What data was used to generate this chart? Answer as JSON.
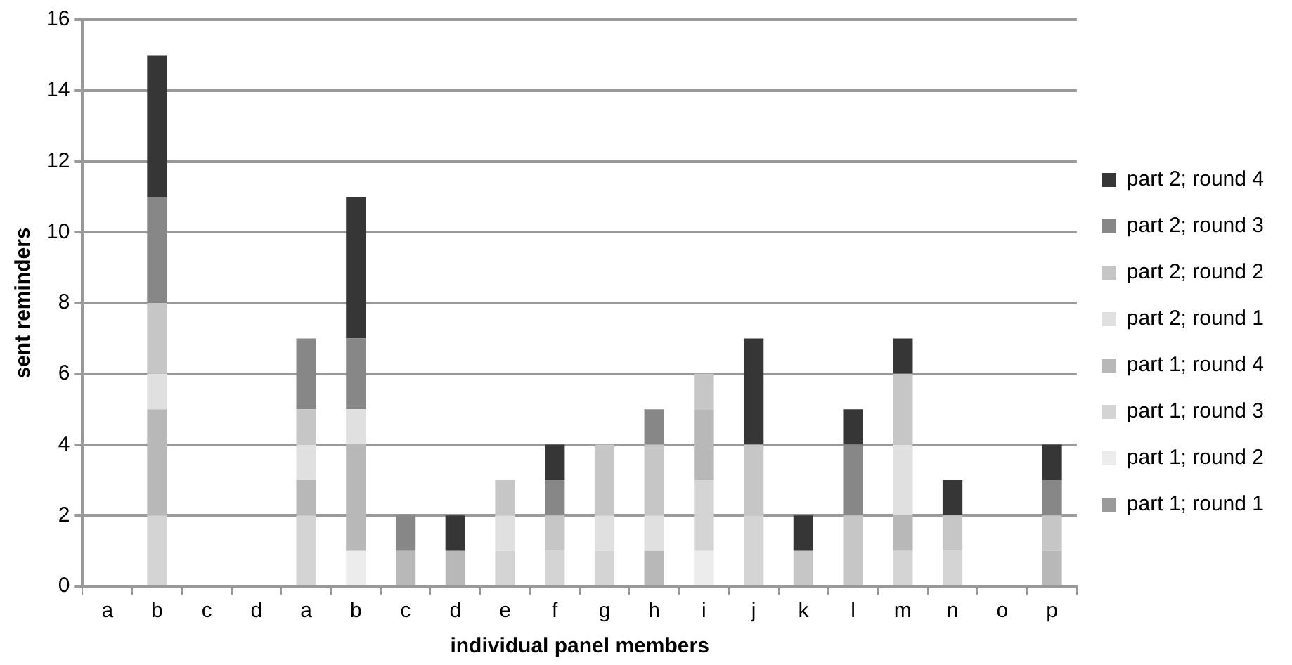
{
  "chart_data": {
    "type": "bar",
    "stacked": true,
    "xlabel": "individual panel members",
    "ylabel": "sent reminders",
    "categories": [
      "a",
      "b",
      "c",
      "d",
      "a",
      "b",
      "c",
      "d",
      "e",
      "f",
      "g",
      "h",
      "i",
      "j",
      "k",
      "l",
      "m",
      "n",
      "o",
      "p"
    ],
    "series": [
      {
        "name": "part 1; round 1",
        "color": "#9a9a9a",
        "values": [
          0,
          0,
          0,
          0,
          0,
          0,
          0,
          0,
          0,
          0,
          0,
          0,
          0,
          0,
          0,
          0,
          0,
          0,
          0,
          0
        ]
      },
      {
        "name": "part 1; round 2",
        "color": "#ececec",
        "values": [
          0,
          0,
          0,
          0,
          0,
          1,
          0,
          0,
          0,
          0,
          0,
          0,
          1,
          0,
          0,
          0,
          0,
          0,
          0,
          0
        ]
      },
      {
        "name": "part 1; round 3",
        "color": "#d4d4d4",
        "values": [
          0,
          2,
          0,
          0,
          2,
          0,
          0,
          0,
          1,
          1,
          1,
          0,
          2,
          2,
          0,
          0,
          1,
          1,
          0,
          0
        ]
      },
      {
        "name": "part 1; round 4",
        "color": "#b8b8b8",
        "values": [
          0,
          3,
          0,
          0,
          1,
          3,
          1,
          1,
          0,
          0,
          0,
          1,
          2,
          0,
          0,
          0,
          1,
          0,
          0,
          1
        ]
      },
      {
        "name": "part 2; round 1",
        "color": "#e0e0e0",
        "values": [
          0,
          1,
          0,
          0,
          1,
          1,
          0,
          0,
          1,
          0,
          1,
          1,
          0,
          0,
          0,
          0,
          2,
          0,
          0,
          0
        ]
      },
      {
        "name": "part 2; round 2",
        "color": "#c6c6c6",
        "values": [
          0,
          2,
          0,
          0,
          1,
          0,
          0,
          0,
          1,
          1,
          2,
          2,
          1,
          2,
          1,
          2,
          2,
          1,
          0,
          1
        ]
      },
      {
        "name": "part 2; round 3",
        "color": "#878787",
        "values": [
          0,
          3,
          0,
          0,
          2,
          2,
          1,
          0,
          0,
          1,
          0,
          1,
          0,
          0,
          0,
          2,
          0,
          0,
          0,
          1
        ]
      },
      {
        "name": "part 2; round 4",
        "color": "#363636",
        "values": [
          0,
          4,
          0,
          0,
          0,
          4,
          0,
          1,
          0,
          1,
          0,
          0,
          0,
          3,
          1,
          1,
          1,
          1,
          0,
          1
        ]
      }
    ],
    "ylim": [
      0,
      16
    ],
    "yticks": [
      0,
      2,
      4,
      6,
      8,
      10,
      12,
      14,
      16
    ],
    "grid": "y",
    "legend": "right"
  }
}
